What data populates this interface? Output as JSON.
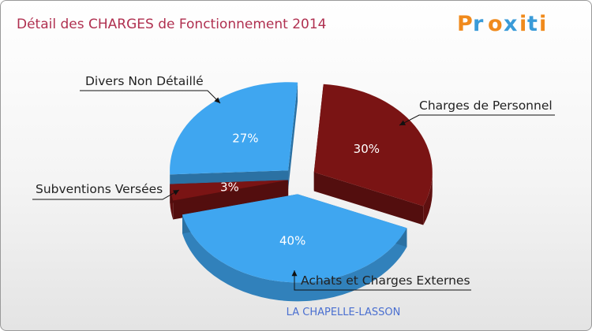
{
  "chart_data": {
    "type": "pie",
    "title": "Détail des CHARGES de Fonctionnement 2014",
    "subtitle": "LA CHAPELLE-LASSON",
    "categories": [
      "Charges de Personnel",
      "Achats et Charges Externes",
      "Subventions Versées",
      "Divers Non Détaillé"
    ],
    "values": [
      30,
      40,
      3,
      27
    ],
    "value_labels": [
      "30%",
      "40%",
      "3%",
      "27%"
    ],
    "colors": [
      "#7a1414",
      "#3fa6f0",
      "#7a1414",
      "#3fa6f0"
    ]
  },
  "logo": {
    "letters": [
      "P",
      "r",
      "o",
      "x",
      "i",
      "t",
      "i"
    ],
    "colors": [
      "#f08a1c",
      "#3a9bd8",
      "#f08a1c",
      "#3a9bd8",
      "#f08a1c",
      "#3a9bd8",
      "#f08a1c"
    ]
  }
}
